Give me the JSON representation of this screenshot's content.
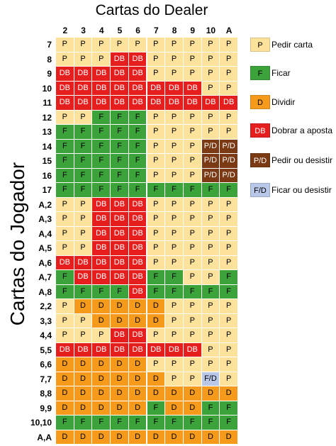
{
  "title": "Cartas do Dealer",
  "ylabel": "Cartas do Jogador",
  "columns": [
    "2",
    "3",
    "4",
    "5",
    "6",
    "7",
    "8",
    "9",
    "10",
    "A"
  ],
  "colors": {
    "P": "#fde29c",
    "F": "#3ba33a",
    "D": "#f59a1b",
    "DB": "#e61e1e",
    "P/D": "#7b3a14",
    "F/D": "#b9c8e8"
  },
  "text_colors": {
    "P": "#000000",
    "F": "#000000",
    "D": "#000000",
    "DB": "#ffffff",
    "P/D": "#ffffff",
    "F/D": "#000000"
  },
  "rows": [
    {
      "label": "7",
      "cells": [
        "P",
        "P",
        "P",
        "P",
        "P",
        "P",
        "P",
        "P",
        "P",
        "P"
      ]
    },
    {
      "label": "8",
      "cells": [
        "P",
        "P",
        "P",
        "DB",
        "DB",
        "P",
        "P",
        "P",
        "P",
        "P"
      ]
    },
    {
      "label": "9",
      "cells": [
        "DB",
        "DB",
        "DB",
        "DB",
        "DB",
        "P",
        "P",
        "P",
        "P",
        "P"
      ]
    },
    {
      "label": "10",
      "cells": [
        "DB",
        "DB",
        "DB",
        "DB",
        "DB",
        "DB",
        "DB",
        "DB",
        "P",
        "P"
      ]
    },
    {
      "label": "11",
      "cells": [
        "DB",
        "DB",
        "DB",
        "DB",
        "DB",
        "DB",
        "DB",
        "DB",
        "DB",
        "DB"
      ]
    },
    {
      "label": "12",
      "cells": [
        "P",
        "P",
        "F",
        "F",
        "F",
        "P",
        "P",
        "P",
        "P",
        "P"
      ]
    },
    {
      "label": "13",
      "cells": [
        "F",
        "F",
        "F",
        "F",
        "F",
        "P",
        "P",
        "P",
        "P",
        "P"
      ]
    },
    {
      "label": "14",
      "cells": [
        "F",
        "F",
        "F",
        "F",
        "F",
        "P",
        "P",
        "P",
        "P/D",
        "P/D"
      ]
    },
    {
      "label": "15",
      "cells": [
        "F",
        "F",
        "F",
        "F",
        "F",
        "P",
        "P",
        "P",
        "P/D",
        "P/D"
      ]
    },
    {
      "label": "16",
      "cells": [
        "F",
        "F",
        "F",
        "F",
        "F",
        "P",
        "P",
        "P",
        "P/D",
        "P/D"
      ]
    },
    {
      "label": "17",
      "cells": [
        "F",
        "F",
        "F",
        "F",
        "F",
        "F",
        "F",
        "F",
        "F",
        "F"
      ]
    },
    {
      "label": "A,2",
      "cells": [
        "P",
        "P",
        "DB",
        "DB",
        "DB",
        "P",
        "P",
        "P",
        "P",
        "P"
      ]
    },
    {
      "label": "A,3",
      "cells": [
        "P",
        "P",
        "DB",
        "DB",
        "DB",
        "P",
        "P",
        "P",
        "P",
        "P"
      ]
    },
    {
      "label": "A,4",
      "cells": [
        "P",
        "P",
        "DB",
        "DB",
        "DB",
        "P",
        "P",
        "P",
        "P",
        "P"
      ]
    },
    {
      "label": "A,5",
      "cells": [
        "P",
        "P",
        "DB",
        "DB",
        "DB",
        "P",
        "P",
        "P",
        "P",
        "P"
      ]
    },
    {
      "label": "A,6",
      "cells": [
        "DB",
        "DB",
        "DB",
        "DB",
        "DB",
        "P",
        "P",
        "P",
        "P",
        "P"
      ]
    },
    {
      "label": "A,7",
      "cells": [
        "F",
        "DB",
        "DB",
        "DB",
        "DB",
        "F",
        "F",
        "P",
        "P",
        "F"
      ]
    },
    {
      "label": "A,8",
      "cells": [
        "F",
        "F",
        "F",
        "F",
        "DB",
        "F",
        "F",
        "F",
        "F",
        "F"
      ]
    },
    {
      "label": "2,2",
      "cells": [
        "P",
        "D",
        "D",
        "D",
        "D",
        "D",
        "P",
        "P",
        "P",
        "P"
      ]
    },
    {
      "label": "3,3",
      "cells": [
        "P",
        "P",
        "D",
        "D",
        "D",
        "D",
        "P",
        "P",
        "P",
        "P"
      ]
    },
    {
      "label": "4,4",
      "cells": [
        "P",
        "P",
        "P",
        "DB",
        "DB",
        "P",
        "P",
        "P",
        "P",
        "P"
      ]
    },
    {
      "label": "5,5",
      "cells": [
        "DB",
        "DB",
        "DB",
        "DB",
        "DB",
        "DB",
        "DB",
        "DB",
        "P",
        "P"
      ]
    },
    {
      "label": "6,6",
      "cells": [
        "D",
        "D",
        "D",
        "D",
        "D",
        "P",
        "P",
        "P",
        "P",
        "P"
      ]
    },
    {
      "label": "7,7",
      "cells": [
        "D",
        "D",
        "D",
        "D",
        "D",
        "D",
        "P",
        "P",
        "F/D",
        "P"
      ]
    },
    {
      "label": "8,8",
      "cells": [
        "D",
        "D",
        "D",
        "D",
        "D",
        "D",
        "D",
        "D",
        "D",
        "D"
      ]
    },
    {
      "label": "9,9",
      "cells": [
        "D",
        "D",
        "D",
        "D",
        "D",
        "F",
        "D",
        "D",
        "F",
        "F"
      ]
    },
    {
      "label": "10,10",
      "cells": [
        "F",
        "F",
        "F",
        "F",
        "F",
        "F",
        "F",
        "F",
        "F",
        "F"
      ]
    },
    {
      "label": "A,A",
      "cells": [
        "D",
        "D",
        "D",
        "D",
        "D",
        "D",
        "D",
        "D",
        "D",
        "D"
      ]
    }
  ],
  "legend": [
    {
      "code": "P",
      "label": "Pedir carta"
    },
    {
      "code": "F",
      "label": "Ficar"
    },
    {
      "code": "D",
      "label": "Dividir"
    },
    {
      "code": "DB",
      "label": "Dobrar a aposta"
    },
    {
      "code": "P/D",
      "label": "Pedir ou desistir"
    },
    {
      "code": "F/D",
      "label": "Ficar ou desistir"
    }
  ]
}
